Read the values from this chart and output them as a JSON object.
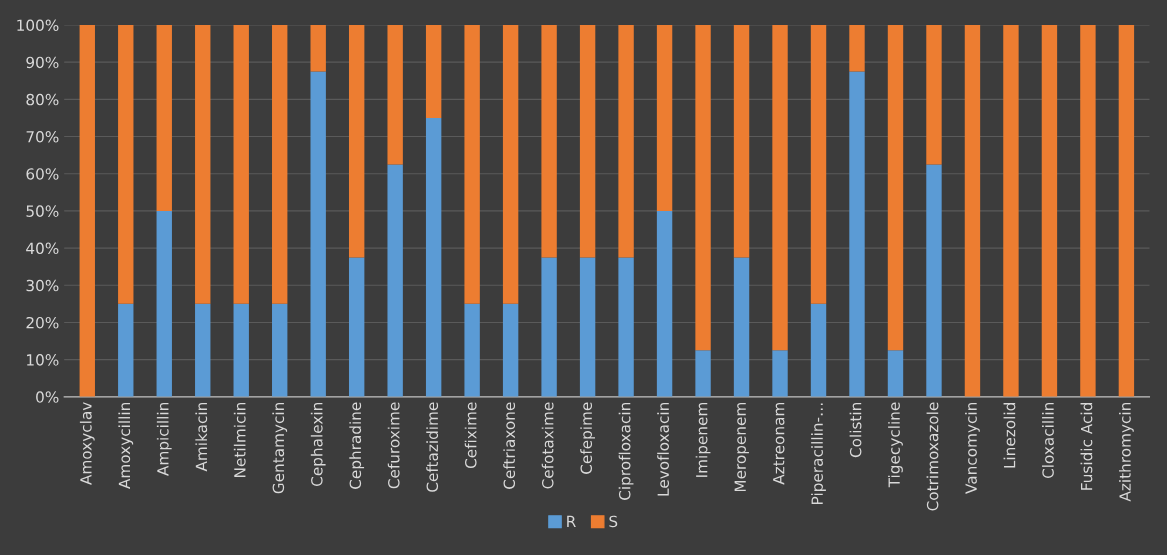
{
  "chart_data": {
    "type": "bar",
    "stacked": true,
    "categories": [
      "Amoxyclav",
      "Amoxycillin",
      "Ampicillin",
      "Amikacin",
      "Netilmicin",
      "Gentamycin",
      "Cephalexin",
      "Cephradine",
      "Cefuroxime",
      "Ceftazidime",
      "Cefixime",
      "Ceftriaxone",
      "Cefotaxime",
      "Cefepime",
      "Ciprofloxacin",
      "Levofloxacin",
      "Imipenem",
      "Meropenem",
      "Aztreonam",
      "Piperacillin-…",
      "Colistin",
      "Tigecycline",
      "Cotrimoxazole",
      "Vancomycin",
      "Linezolid",
      "Cloxacillin",
      "Fusidic Acid",
      "Azithromycin"
    ],
    "series": [
      {
        "name": "R",
        "color": "#5b9bd5",
        "values": [
          0,
          25,
          50,
          25,
          25,
          25,
          87.5,
          37.5,
          62.5,
          75,
          25,
          25,
          37.5,
          37.5,
          37.5,
          50,
          12.5,
          37.5,
          12.5,
          25,
          87.5,
          12.5,
          62.5,
          0,
          0,
          0,
          0,
          0
        ]
      },
      {
        "name": "S",
        "color": "#ed7d31",
        "values": [
          100,
          75,
          50,
          75,
          75,
          75,
          12.5,
          62.5,
          37.5,
          25,
          75,
          75,
          62.5,
          62.5,
          62.5,
          50,
          87.5,
          62.5,
          87.5,
          75,
          12.5,
          87.5,
          37.5,
          100,
          100,
          100,
          100,
          100
        ]
      }
    ],
    "ylim": [
      0,
      100
    ],
    "yticks": [
      {
        "value": 0,
        "label": "0%"
      },
      {
        "value": 10,
        "label": "10%"
      },
      {
        "value": 20,
        "label": "20%"
      },
      {
        "value": 30,
        "label": "30%"
      },
      {
        "value": 40,
        "label": "40%"
      },
      {
        "value": 50,
        "label": "50%"
      },
      {
        "value": 60,
        "label": "60%"
      },
      {
        "value": 70,
        "label": "70%"
      },
      {
        "value": 80,
        "label": "80%"
      },
      {
        "value": 90,
        "label": "90%"
      },
      {
        "value": 100,
        "label": "100%"
      }
    ],
    "grid": "y",
    "legend": "bottom"
  }
}
